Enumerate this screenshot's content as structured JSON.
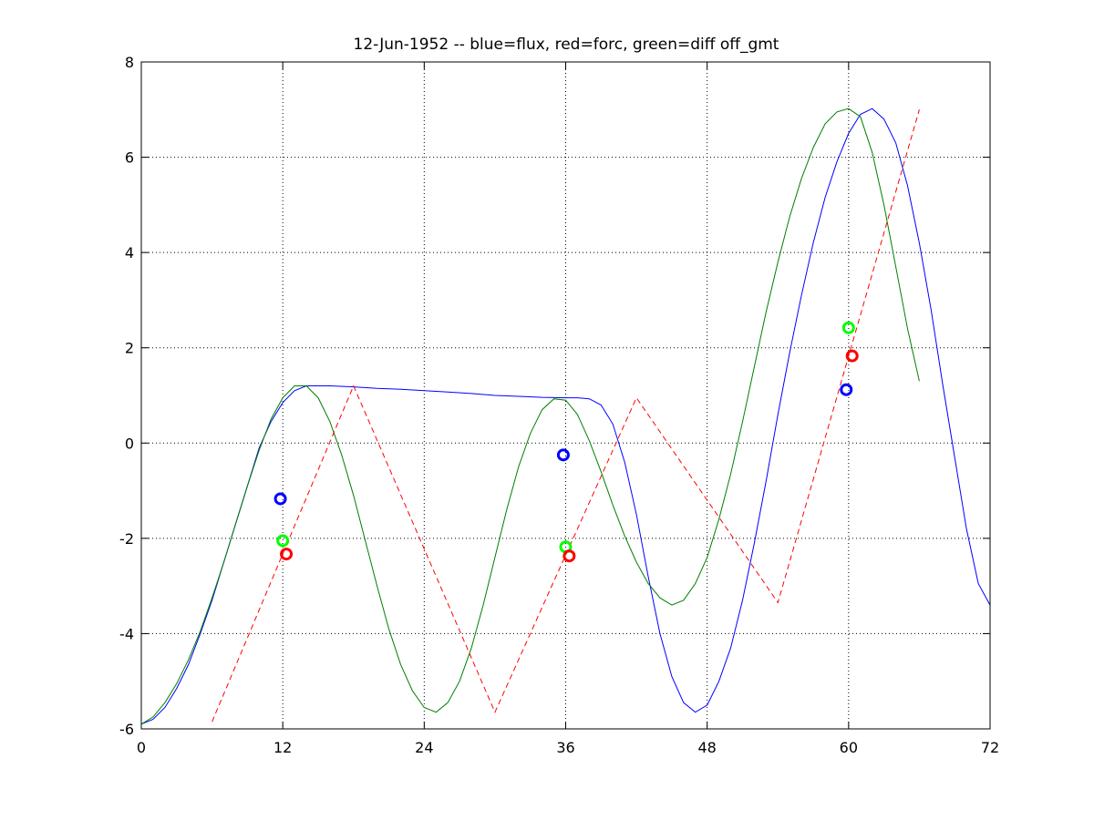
{
  "chart_data": {
    "type": "line",
    "title": "12-Jun-1952 -- blue=flux, red=forc, green=diff off_gmt",
    "xlabel": "",
    "ylabel": "",
    "xlim": [
      0,
      72
    ],
    "ylim": [
      -6,
      8
    ],
    "xticks": [
      0,
      12,
      24,
      36,
      48,
      60,
      72
    ],
    "yticks": [
      -6,
      -4,
      -2,
      0,
      2,
      4,
      6,
      8
    ],
    "grid": true,
    "colors": {
      "blue": "#0000ff",
      "red": "#ff0000",
      "green": "#007f00",
      "marker_blue": "#0000ff",
      "marker_red": "#ff0000",
      "marker_green": "#00ff00"
    },
    "series": [
      {
        "color": "blue",
        "style": "solid",
        "points": [
          [
            0,
            -5.9
          ],
          [
            1,
            -5.8
          ],
          [
            2,
            -5.55
          ],
          [
            3,
            -5.15
          ],
          [
            4,
            -4.65
          ],
          [
            5,
            -4.0
          ],
          [
            6,
            -3.3
          ],
          [
            7,
            -2.5
          ],
          [
            8,
            -1.7
          ],
          [
            9,
            -0.9
          ],
          [
            10,
            -0.1
          ],
          [
            11,
            0.45
          ],
          [
            12,
            0.85
          ],
          [
            13,
            1.1
          ],
          [
            14,
            1.2
          ],
          [
            15,
            1.2
          ],
          [
            16,
            1.2
          ],
          [
            18,
            1.18
          ],
          [
            20,
            1.15
          ],
          [
            22,
            1.13
          ],
          [
            24,
            1.1
          ],
          [
            26,
            1.07
          ],
          [
            28,
            1.04
          ],
          [
            30,
            1.0
          ],
          [
            32,
            0.98
          ],
          [
            34,
            0.96
          ],
          [
            36,
            0.95
          ],
          [
            37,
            0.95
          ],
          [
            38,
            0.93
          ],
          [
            39,
            0.8
          ],
          [
            40,
            0.4
          ],
          [
            41,
            -0.4
          ],
          [
            42,
            -1.5
          ],
          [
            43,
            -2.8
          ],
          [
            44,
            -4.0
          ],
          [
            45,
            -4.9
          ],
          [
            46,
            -5.45
          ],
          [
            47,
            -5.65
          ],
          [
            48,
            -5.5
          ],
          [
            49,
            -5.0
          ],
          [
            50,
            -4.3
          ],
          [
            51,
            -3.3
          ],
          [
            52,
            -2.1
          ],
          [
            53,
            -0.8
          ],
          [
            54,
            0.6
          ],
          [
            55,
            1.9
          ],
          [
            56,
            3.1
          ],
          [
            57,
            4.2
          ],
          [
            58,
            5.15
          ],
          [
            59,
            5.9
          ],
          [
            60,
            6.5
          ],
          [
            61,
            6.9
          ],
          [
            62,
            7.02
          ],
          [
            63,
            6.8
          ],
          [
            64,
            6.3
          ],
          [
            65,
            5.4
          ],
          [
            66,
            4.2
          ],
          [
            67,
            2.8
          ],
          [
            68,
            1.2
          ],
          [
            69,
            -0.3
          ],
          [
            70,
            -1.8
          ],
          [
            71,
            -2.95
          ],
          [
            72,
            -3.4
          ]
        ]
      },
      {
        "color": "green",
        "style": "solid",
        "points": [
          [
            0,
            -5.9
          ],
          [
            1,
            -5.75
          ],
          [
            2,
            -5.45
          ],
          [
            3,
            -5.05
          ],
          [
            4,
            -4.55
          ],
          [
            5,
            -3.95
          ],
          [
            6,
            -3.25
          ],
          [
            7,
            -2.5
          ],
          [
            8,
            -1.7
          ],
          [
            9,
            -0.9
          ],
          [
            10,
            -0.15
          ],
          [
            11,
            0.5
          ],
          [
            12,
            0.95
          ],
          [
            13,
            1.2
          ],
          [
            14,
            1.2
          ],
          [
            15,
            0.95
          ],
          [
            16,
            0.45
          ],
          [
            17,
            -0.25
          ],
          [
            18,
            -1.1
          ],
          [
            19,
            -2.05
          ],
          [
            20,
            -3.0
          ],
          [
            21,
            -3.9
          ],
          [
            22,
            -4.65
          ],
          [
            23,
            -5.2
          ],
          [
            24,
            -5.55
          ],
          [
            25,
            -5.65
          ],
          [
            26,
            -5.45
          ],
          [
            27,
            -5.0
          ],
          [
            28,
            -4.3
          ],
          [
            29,
            -3.4
          ],
          [
            30,
            -2.4
          ],
          [
            31,
            -1.4
          ],
          [
            32,
            -0.5
          ],
          [
            33,
            0.2
          ],
          [
            34,
            0.7
          ],
          [
            35,
            0.93
          ],
          [
            36,
            0.9
          ],
          [
            37,
            0.6
          ],
          [
            38,
            0.05
          ],
          [
            39,
            -0.6
          ],
          [
            40,
            -1.3
          ],
          [
            41,
            -1.95
          ],
          [
            42,
            -2.5
          ],
          [
            43,
            -2.95
          ],
          [
            44,
            -3.25
          ],
          [
            45,
            -3.4
          ],
          [
            46,
            -3.3
          ],
          [
            47,
            -2.95
          ],
          [
            48,
            -2.4
          ],
          [
            49,
            -1.6
          ],
          [
            50,
            -0.65
          ],
          [
            51,
            0.45
          ],
          [
            52,
            1.6
          ],
          [
            53,
            2.75
          ],
          [
            54,
            3.8
          ],
          [
            55,
            4.75
          ],
          [
            56,
            5.55
          ],
          [
            57,
            6.2
          ],
          [
            58,
            6.7
          ],
          [
            59,
            6.95
          ],
          [
            60,
            7.02
          ],
          [
            61,
            6.85
          ],
          [
            62,
            6.1
          ],
          [
            63,
            5.0
          ],
          [
            64,
            3.7
          ],
          [
            65,
            2.4
          ],
          [
            66,
            1.3
          ]
        ]
      },
      {
        "color": "red",
        "style": "dashed",
        "points": [
          [
            6,
            -5.85
          ],
          [
            18,
            1.2
          ],
          [
            30,
            -5.65
          ],
          [
            42,
            0.95
          ],
          [
            54,
            -3.35
          ],
          [
            66,
            7.0
          ]
        ]
      }
    ],
    "markers": [
      {
        "color": "marker_blue",
        "x": 11.8,
        "y": -1.17
      },
      {
        "color": "marker_green",
        "x": 12.0,
        "y": -2.05
      },
      {
        "color": "marker_red",
        "x": 12.3,
        "y": -2.33
      },
      {
        "color": "marker_blue",
        "x": 35.8,
        "y": -0.25
      },
      {
        "color": "marker_green",
        "x": 36.0,
        "y": -2.18
      },
      {
        "color": "marker_red",
        "x": 36.3,
        "y": -2.37
      },
      {
        "color": "marker_blue",
        "x": 59.8,
        "y": 1.12
      },
      {
        "color": "marker_green",
        "x": 60.0,
        "y": 2.42
      },
      {
        "color": "marker_red",
        "x": 60.3,
        "y": 1.83
      }
    ]
  }
}
